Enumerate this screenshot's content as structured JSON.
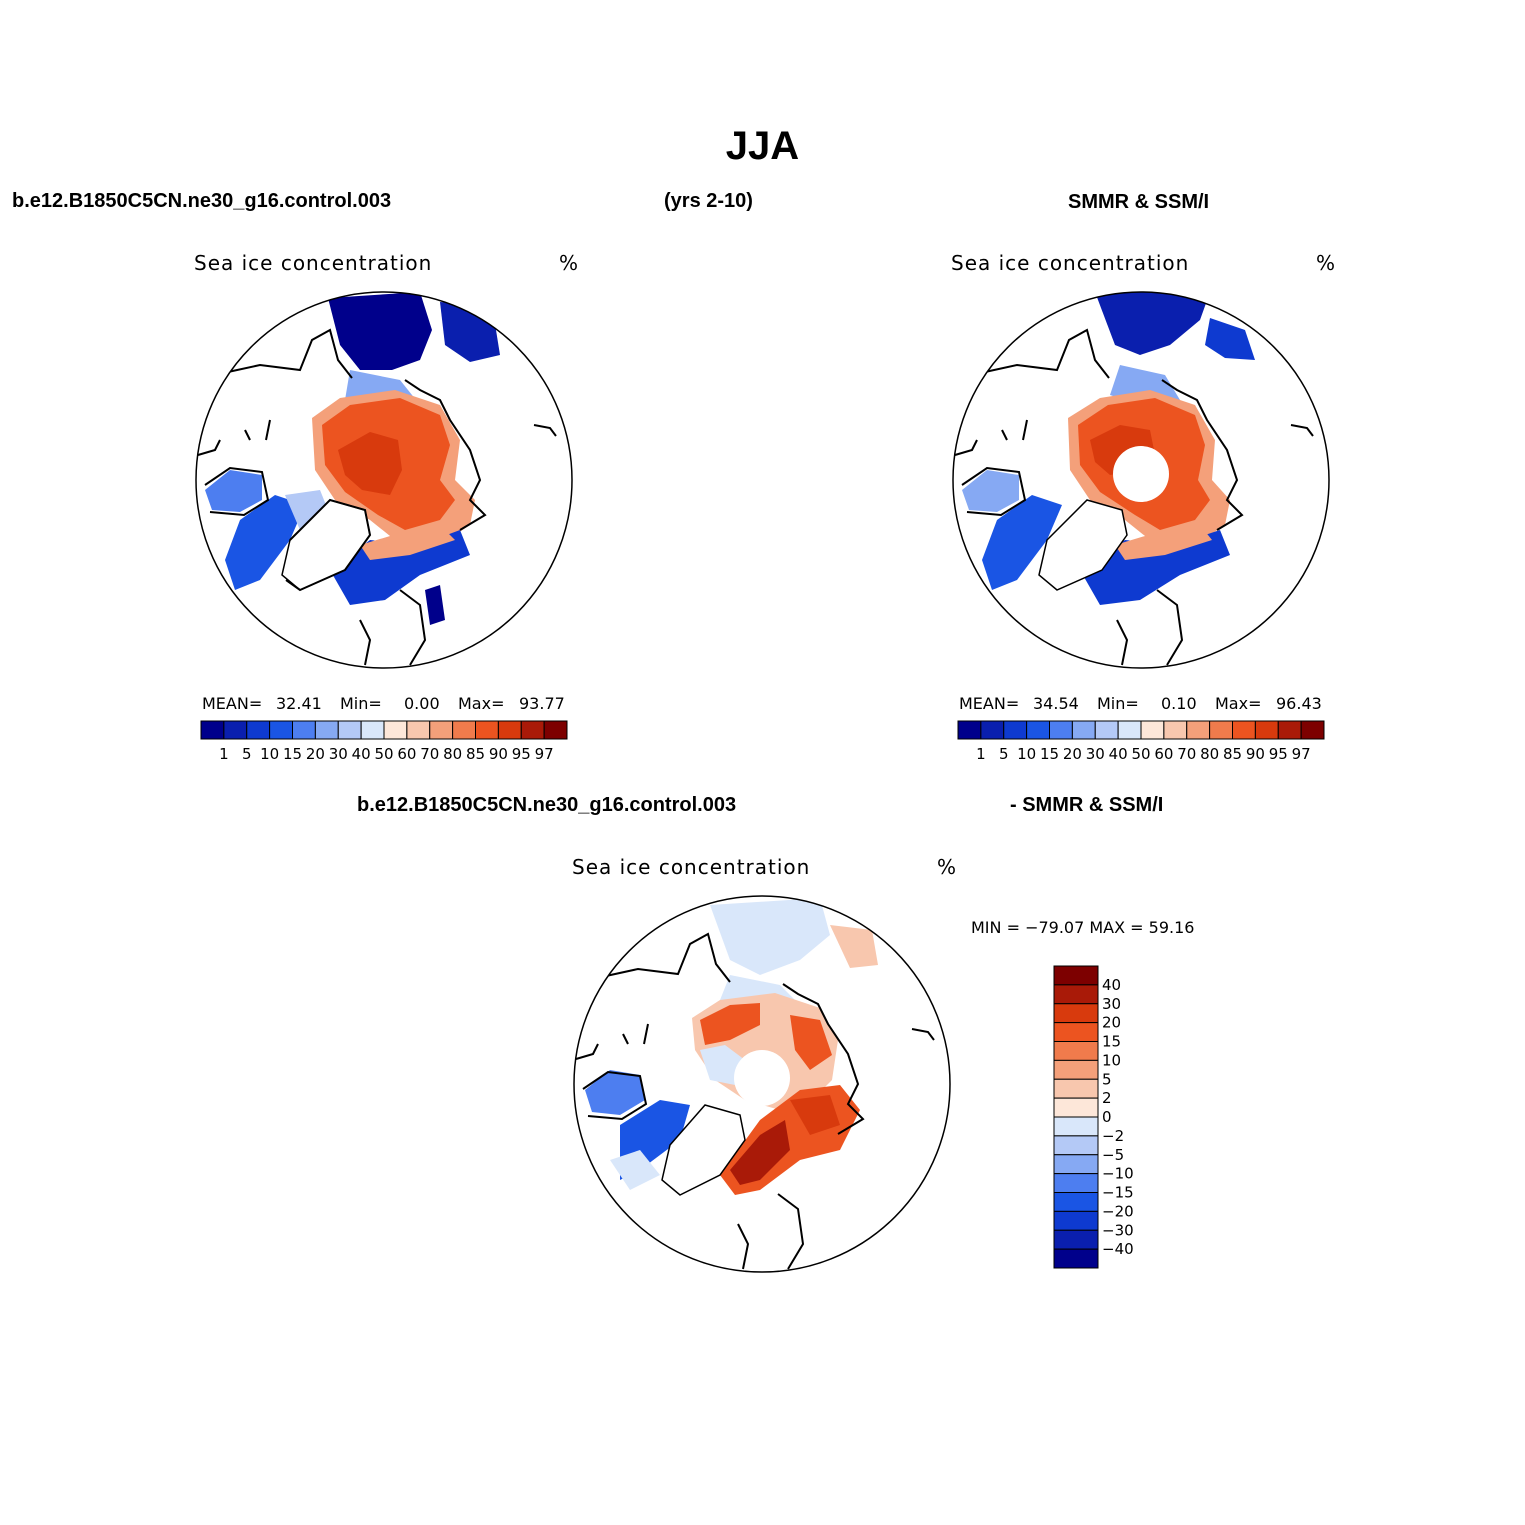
{
  "figure": {
    "title": "JJA",
    "top_left_header": "b.e12.B1850C5CN.ne30_g16.control.003",
    "top_center_header": "(yrs 2-10)",
    "top_right_header": "SMMR & SSM/I",
    "bottom_left_header": "b.e12.B1850C5CN.ne30_g16.control.003",
    "bottom_right_header": "- SMMR & SSM/I"
  },
  "panels": {
    "model": {
      "title": "Sea ice concentration",
      "units": "%",
      "mean_label": "MEAN=",
      "mean_value": "32.41",
      "min_label": "Min=",
      "min_value": "0.00",
      "max_label": "Max=",
      "max_value": "93.77"
    },
    "obs": {
      "title": "Sea ice concentration",
      "units": "%",
      "mean_label": "MEAN=",
      "mean_value": "34.54",
      "min_label": "Min=",
      "min_value": "0.10",
      "max_label": "Max=",
      "max_value": "96.43"
    },
    "diff": {
      "title": "Sea ice concentration",
      "units": "%",
      "minmax_text": "MIN = −79.07 MAX =   59.16"
    }
  },
  "colorbar_conc": {
    "labels": [
      "1",
      "5",
      "10",
      "15",
      "20",
      "30",
      "40",
      "50",
      "60",
      "70",
      "80",
      "85",
      "90",
      "95",
      "97"
    ],
    "colors": [
      "#00008b",
      "#0a1fae",
      "#0e3ad0",
      "#1a55e4",
      "#4d7ef0",
      "#86a9f3",
      "#b4c9f6",
      "#d9e7fa",
      "#fde7d9",
      "#f8c7ae",
      "#f4a07a",
      "#f07b4c",
      "#ec5420",
      "#d83a0d",
      "#a91a08",
      "#7d0000"
    ]
  },
  "colorbar_diff": {
    "labels": [
      "40",
      "30",
      "20",
      "15",
      "10",
      "5",
      "2",
      "0",
      "−2",
      "−5",
      "−10",
      "−15",
      "−20",
      "−30",
      "−40"
    ],
    "colors": [
      "#7d0000",
      "#a91a08",
      "#d83a0d",
      "#ec5420",
      "#f07b4c",
      "#f4a07a",
      "#f8c7ae",
      "#fde7d9",
      "#d9e7fa",
      "#b4c9f6",
      "#86a9f3",
      "#4d7ef0",
      "#1a55e4",
      "#0e3ad0",
      "#0a1fae",
      "#00008b"
    ]
  }
}
